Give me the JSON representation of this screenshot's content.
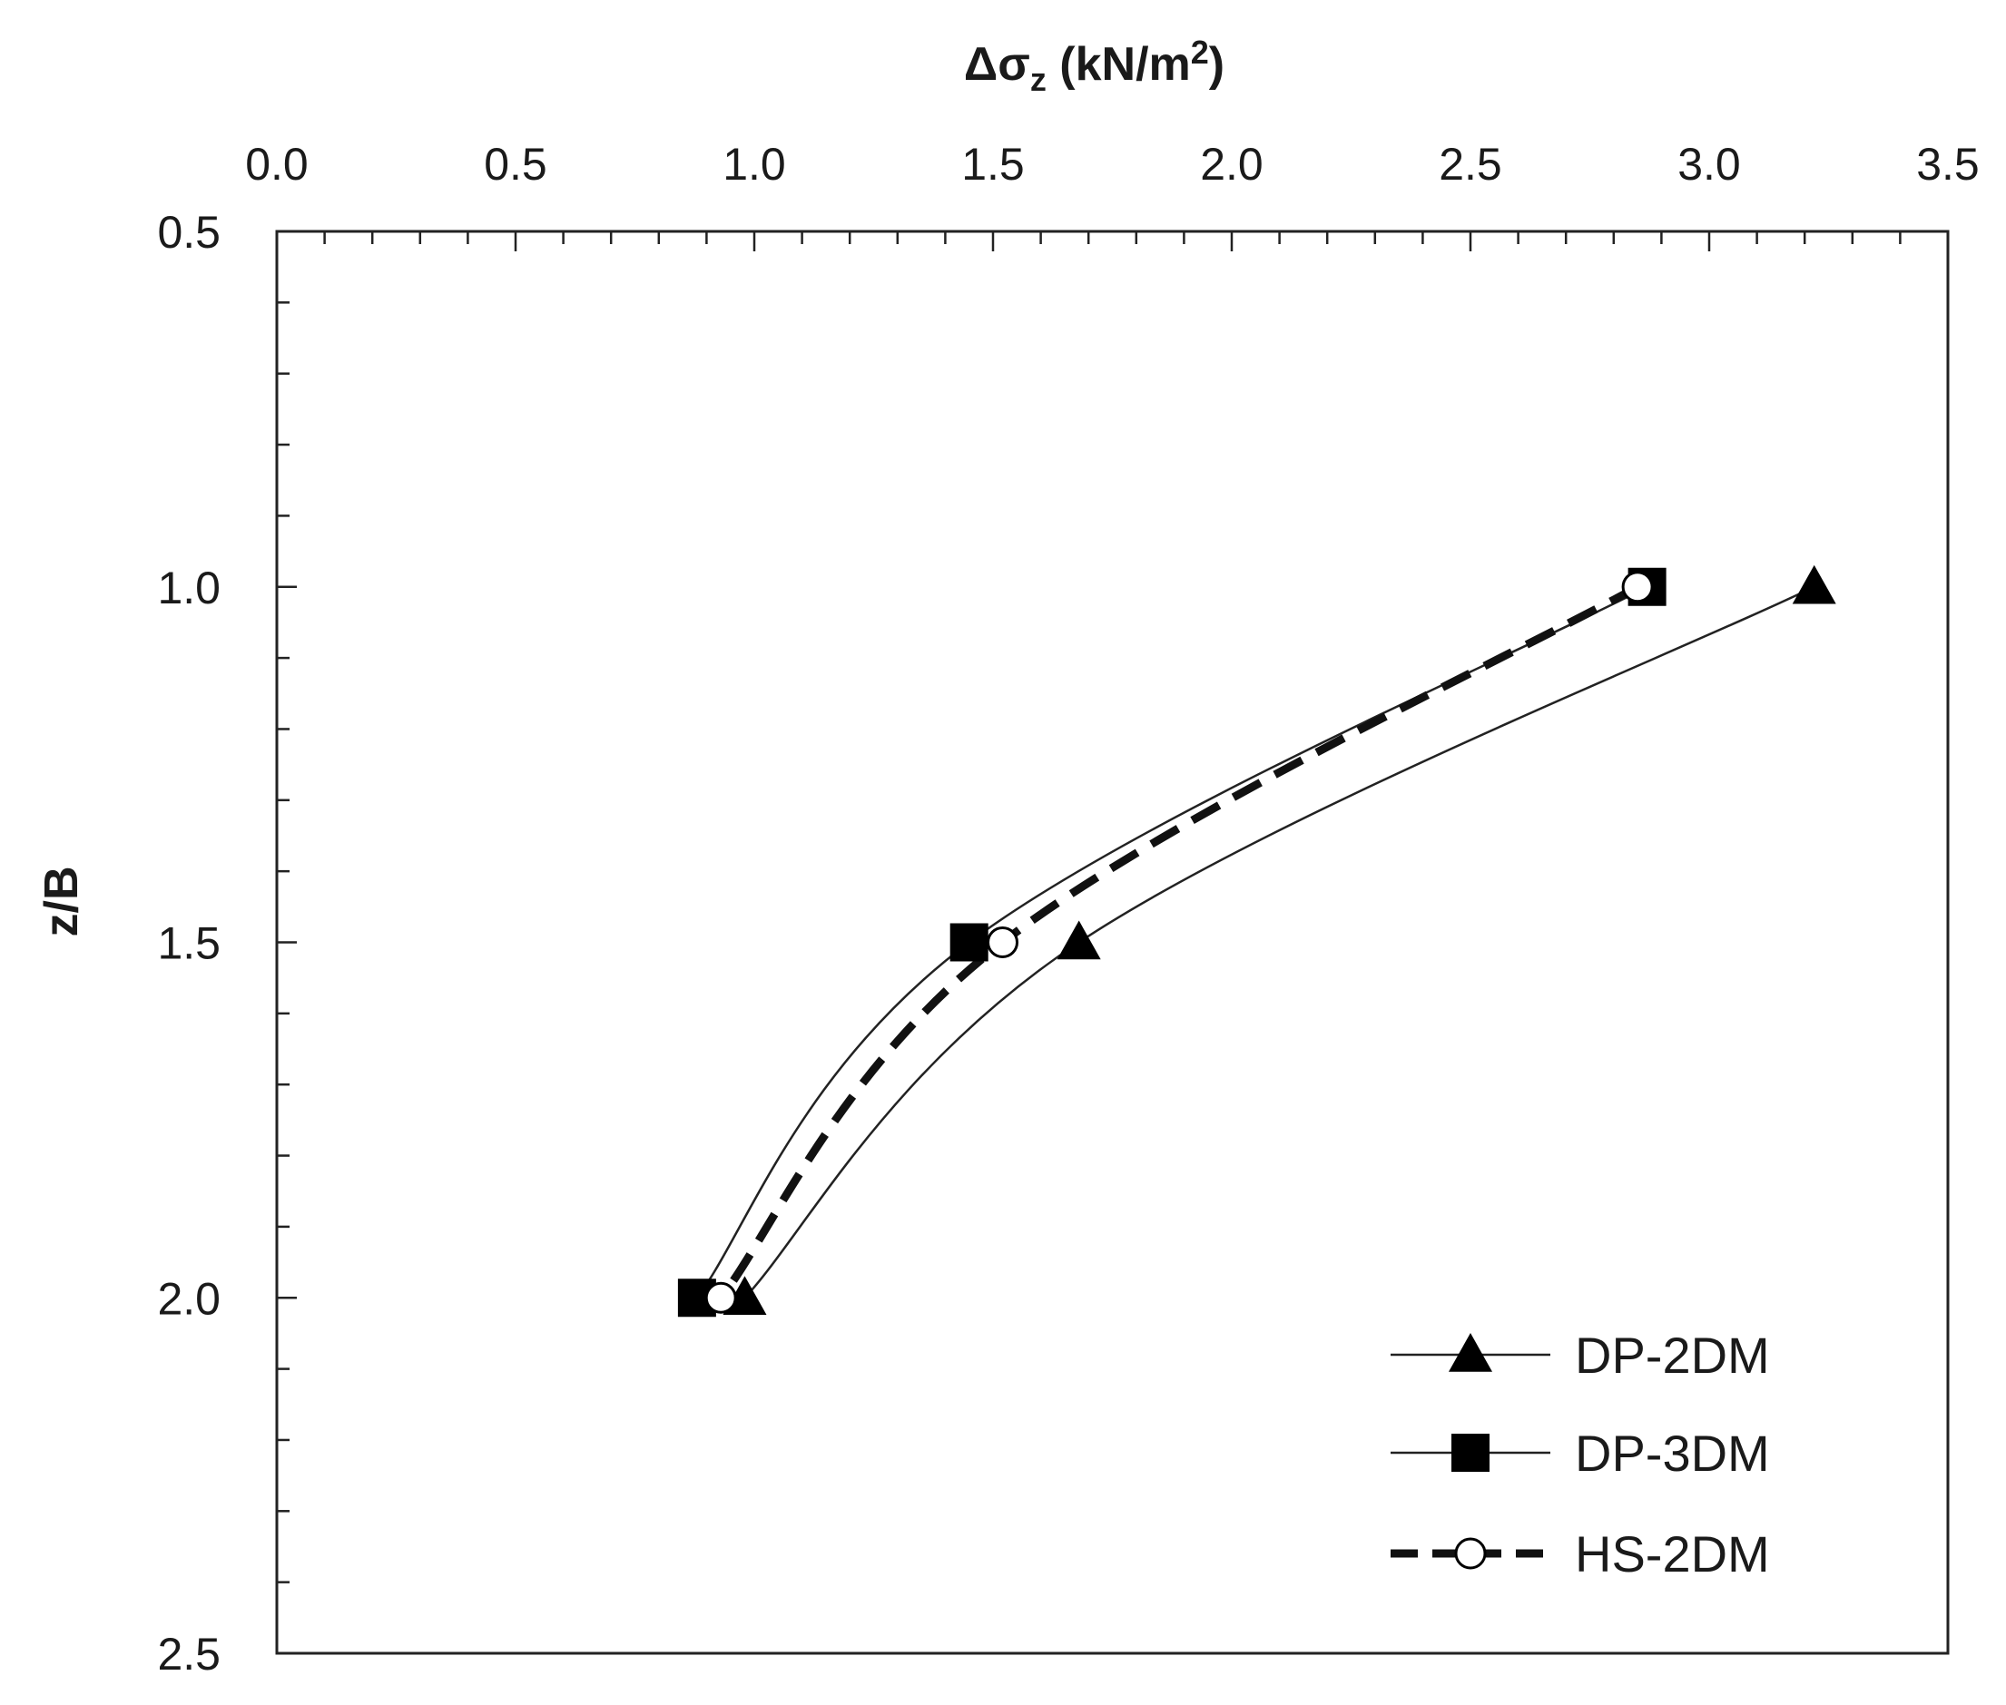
{
  "chart_data": {
    "type": "line",
    "title": "",
    "xlabel": "Δσz (kN/m²)",
    "xlabel_parts": {
      "base": "Δσ",
      "sub": "z",
      "unit_open": " (kN/m",
      "sup": "2",
      "unit_close": ")"
    },
    "ylabel": "z/B",
    "xlim": [
      0,
      3.5
    ],
    "ylim": [
      0.5,
      2.5
    ],
    "y_inverted": true,
    "x_axis_position": "top",
    "x_ticks": [
      "0.0",
      "0.5",
      "1.0",
      "1.5",
      "2.0",
      "2.5",
      "3.0",
      "3.5"
    ],
    "y_ticks": [
      "0.5",
      "1.0",
      "1.5",
      "2.0",
      "2.5"
    ],
    "grid": false,
    "legend_position": "bottom-right",
    "series": [
      {
        "name": "DP-2DM",
        "marker": "triangle-filled",
        "line": "solid-thin",
        "points": [
          {
            "x": 3.22,
            "y": 1.0
          },
          {
            "x": 1.68,
            "y": 1.5
          },
          {
            "x": 0.98,
            "y": 2.0
          }
        ]
      },
      {
        "name": "DP-3DM",
        "marker": "square-filled",
        "line": "solid-thin",
        "points": [
          {
            "x": 2.87,
            "y": 1.0
          },
          {
            "x": 1.45,
            "y": 1.5
          },
          {
            "x": 0.88,
            "y": 2.0
          }
        ]
      },
      {
        "name": "HS-2DM",
        "marker": "circle-open",
        "line": "dashed-thick",
        "points": [
          {
            "x": 2.85,
            "y": 1.0
          },
          {
            "x": 1.52,
            "y": 1.5
          },
          {
            "x": 0.93,
            "y": 2.0
          }
        ]
      }
    ]
  }
}
